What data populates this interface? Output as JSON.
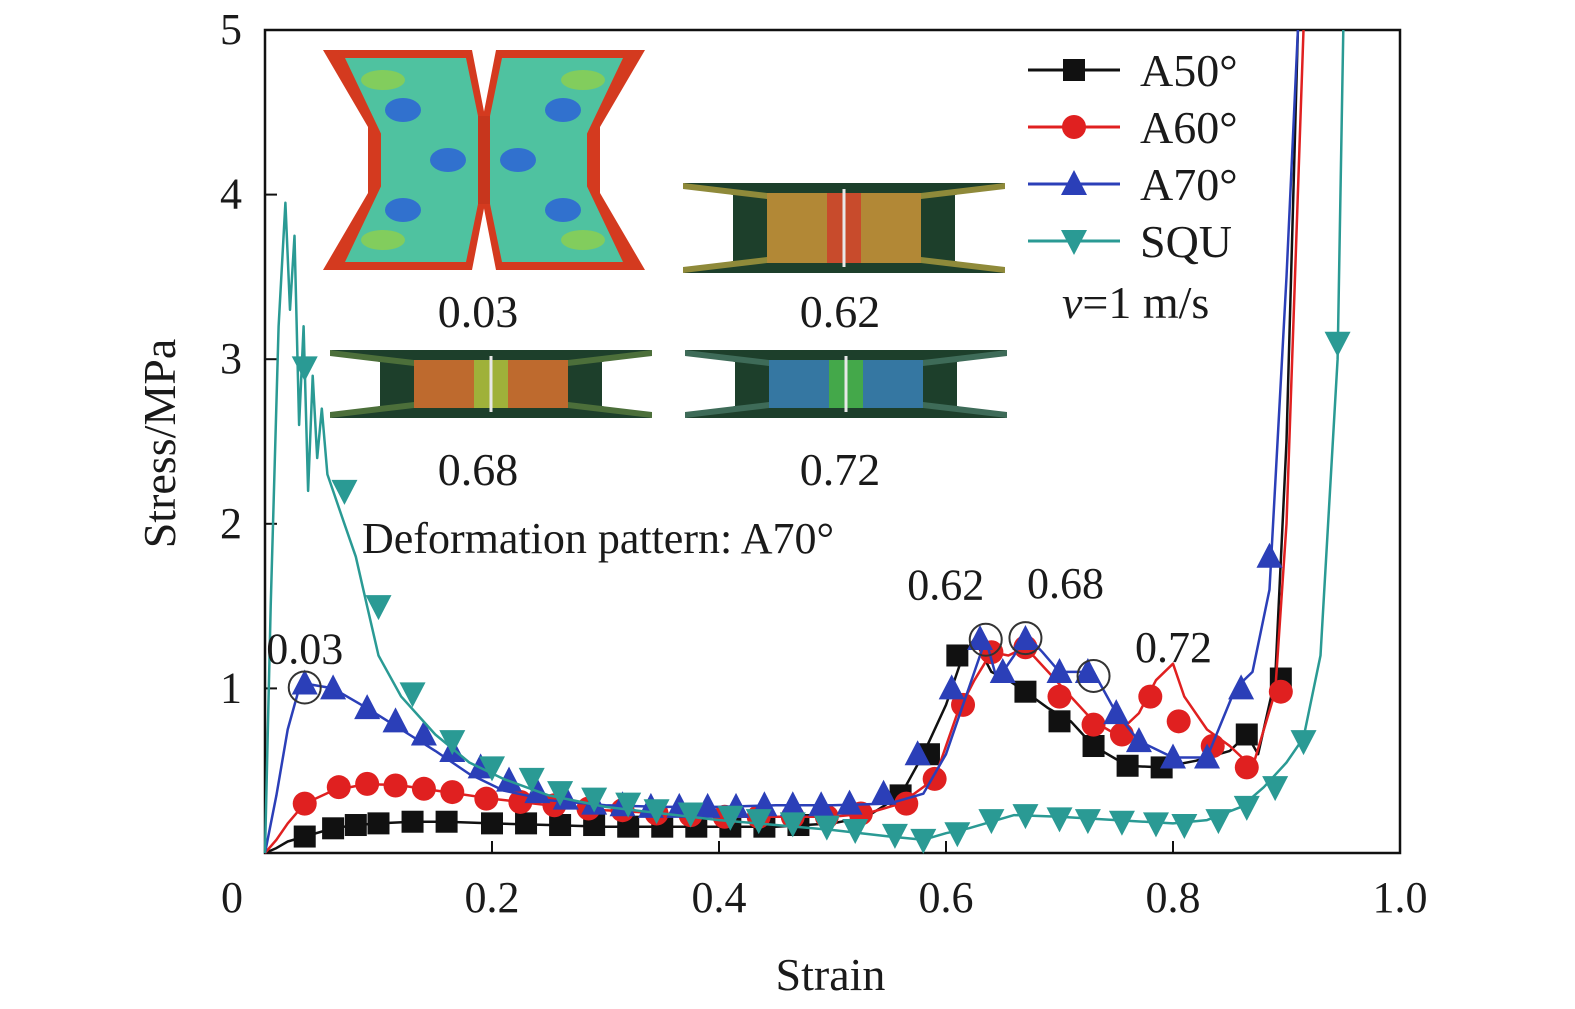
{
  "chart_data": {
    "type": "line",
    "xlabel": "Strain",
    "ylabel": "Stress/MPa",
    "xlim": [
      0,
      1.0
    ],
    "ylim": [
      0,
      5
    ],
    "x_ticks": [
      "0",
      "0.2",
      "0.4",
      "0.6",
      "0.8",
      "1.0"
    ],
    "y_ticks": [
      "1",
      "2",
      "3",
      "4",
      "5"
    ],
    "grid": false,
    "legend_position": "top-right",
    "legend_note": "v=1 m/s",
    "series": [
      {
        "name": "A50°",
        "color": "#111111",
        "marker": "square",
        "points": [
          [
            0,
            0
          ],
          [
            0.01,
            0.03
          ],
          [
            0.02,
            0.07
          ],
          [
            0.035,
            0.1
          ],
          [
            0.06,
            0.15
          ],
          [
            0.08,
            0.17
          ],
          [
            0.1,
            0.18
          ],
          [
            0.13,
            0.19
          ],
          [
            0.16,
            0.19
          ],
          [
            0.2,
            0.18
          ],
          [
            0.25,
            0.17
          ],
          [
            0.3,
            0.16
          ],
          [
            0.35,
            0.16
          ],
          [
            0.4,
            0.16
          ],
          [
            0.45,
            0.16
          ],
          [
            0.5,
            0.18
          ],
          [
            0.53,
            0.22
          ],
          [
            0.56,
            0.35
          ],
          [
            0.58,
            0.6
          ],
          [
            0.6,
            0.9
          ],
          [
            0.615,
            1.2
          ],
          [
            0.625,
            1.3
          ],
          [
            0.64,
            1.1
          ],
          [
            0.655,
            1.05
          ],
          [
            0.67,
            0.98
          ],
          [
            0.69,
            0.88
          ],
          [
            0.71,
            0.8
          ],
          [
            0.73,
            0.65
          ],
          [
            0.76,
            0.53
          ],
          [
            0.79,
            0.52
          ],
          [
            0.82,
            0.56
          ],
          [
            0.85,
            0.62
          ],
          [
            0.865,
            0.72
          ],
          [
            0.875,
            0.6
          ],
          [
            0.89,
            1.06
          ],
          [
            0.9,
            2.5
          ],
          [
            0.91,
            5.0
          ]
        ],
        "markers_x": [
          0.035,
          0.06,
          0.08,
          0.1,
          0.13,
          0.16,
          0.2,
          0.23,
          0.26,
          0.29,
          0.32,
          0.35,
          0.38,
          0.41,
          0.44,
          0.47,
          0.56,
          0.585,
          0.61,
          0.67,
          0.7,
          0.73,
          0.76,
          0.79,
          0.865,
          0.895
        ],
        "markers_y": [
          0.1,
          0.15,
          0.17,
          0.18,
          0.19,
          0.19,
          0.18,
          0.18,
          0.17,
          0.17,
          0.16,
          0.16,
          0.16,
          0.16,
          0.16,
          0.17,
          0.35,
          0.6,
          1.2,
          0.98,
          0.8,
          0.65,
          0.53,
          0.52,
          0.72,
          1.06
        ]
      },
      {
        "name": "A60°",
        "color": "#e02020",
        "marker": "circle",
        "points": [
          [
            0,
            0
          ],
          [
            0.01,
            0.08
          ],
          [
            0.02,
            0.18
          ],
          [
            0.035,
            0.3
          ],
          [
            0.06,
            0.38
          ],
          [
            0.09,
            0.42
          ],
          [
            0.12,
            0.41
          ],
          [
            0.16,
            0.37
          ],
          [
            0.2,
            0.33
          ],
          [
            0.25,
            0.29
          ],
          [
            0.3,
            0.26
          ],
          [
            0.35,
            0.24
          ],
          [
            0.4,
            0.22
          ],
          [
            0.45,
            0.22
          ],
          [
            0.5,
            0.22
          ],
          [
            0.53,
            0.24
          ],
          [
            0.56,
            0.3
          ],
          [
            0.59,
            0.45
          ],
          [
            0.61,
            0.85
          ],
          [
            0.625,
            1.05
          ],
          [
            0.64,
            1.22
          ],
          [
            0.655,
            1.2
          ],
          [
            0.67,
            1.25
          ],
          [
            0.69,
            1.1
          ],
          [
            0.71,
            0.95
          ],
          [
            0.73,
            0.8
          ],
          [
            0.75,
            0.72
          ],
          [
            0.77,
            0.85
          ],
          [
            0.785,
            1.05
          ],
          [
            0.8,
            1.15
          ],
          [
            0.81,
            0.95
          ],
          [
            0.83,
            0.75
          ],
          [
            0.85,
            0.65
          ],
          [
            0.87,
            0.52
          ],
          [
            0.89,
            0.98
          ],
          [
            0.9,
            2.0
          ],
          [
            0.915,
            5.0
          ]
        ],
        "markers_x": [
          0.035,
          0.065,
          0.09,
          0.115,
          0.14,
          0.165,
          0.195,
          0.225,
          0.255,
          0.285,
          0.315,
          0.345,
          0.375,
          0.405,
          0.435,
          0.465,
          0.495,
          0.525,
          0.565,
          0.59,
          0.615,
          0.64,
          0.67,
          0.7,
          0.73,
          0.755,
          0.78,
          0.805,
          0.835,
          0.865,
          0.895
        ],
        "markers_y": [
          0.3,
          0.4,
          0.42,
          0.41,
          0.39,
          0.37,
          0.33,
          0.31,
          0.29,
          0.27,
          0.26,
          0.24,
          0.23,
          0.22,
          0.22,
          0.22,
          0.22,
          0.24,
          0.3,
          0.45,
          0.9,
          1.22,
          1.25,
          0.95,
          0.78,
          0.72,
          0.95,
          0.8,
          0.65,
          0.52,
          0.98
        ]
      },
      {
        "name": "A70°",
        "color": "#2b3fb8",
        "marker": "triangle-up",
        "points": [
          [
            0,
            0
          ],
          [
            0.01,
            0.35
          ],
          [
            0.02,
            0.75
          ],
          [
            0.03,
            1.0
          ],
          [
            0.035,
            1.03
          ],
          [
            0.06,
            1.0
          ],
          [
            0.09,
            0.88
          ],
          [
            0.12,
            0.75
          ],
          [
            0.15,
            0.62
          ],
          [
            0.18,
            0.48
          ],
          [
            0.21,
            0.38
          ],
          [
            0.25,
            0.32
          ],
          [
            0.3,
            0.29
          ],
          [
            0.35,
            0.28
          ],
          [
            0.4,
            0.28
          ],
          [
            0.45,
            0.29
          ],
          [
            0.5,
            0.29
          ],
          [
            0.55,
            0.3
          ],
          [
            0.58,
            0.36
          ],
          [
            0.6,
            0.6
          ],
          [
            0.62,
            1.0
          ],
          [
            0.635,
            1.3
          ],
          [
            0.645,
            1.05
          ],
          [
            0.66,
            1.2
          ],
          [
            0.67,
            1.33
          ],
          [
            0.685,
            1.22
          ],
          [
            0.7,
            1.1
          ],
          [
            0.72,
            1.1
          ],
          [
            0.73,
            1.1
          ],
          [
            0.75,
            0.85
          ],
          [
            0.77,
            0.68
          ],
          [
            0.8,
            0.58
          ],
          [
            0.83,
            0.58
          ],
          [
            0.855,
            1.0
          ],
          [
            0.87,
            1.1
          ],
          [
            0.885,
            1.6
          ],
          [
            0.9,
            3.5
          ],
          [
            0.91,
            5.0
          ]
        ],
        "markers_x": [
          0.035,
          0.06,
          0.09,
          0.115,
          0.14,
          0.165,
          0.19,
          0.215,
          0.24,
          0.265,
          0.29,
          0.315,
          0.34,
          0.365,
          0.39,
          0.415,
          0.44,
          0.465,
          0.49,
          0.515,
          0.545,
          0.575,
          0.605,
          0.63,
          0.65,
          0.67,
          0.7,
          0.725,
          0.75,
          0.77,
          0.8,
          0.83,
          0.86,
          0.885
        ],
        "markers_y": [
          1.03,
          1.0,
          0.88,
          0.8,
          0.72,
          0.62,
          0.52,
          0.44,
          0.37,
          0.33,
          0.3,
          0.29,
          0.28,
          0.28,
          0.28,
          0.28,
          0.29,
          0.29,
          0.29,
          0.3,
          0.36,
          0.6,
          1.0,
          1.3,
          1.1,
          1.3,
          1.1,
          1.1,
          0.85,
          0.68,
          0.58,
          0.58,
          1.0,
          1.8
        ]
      },
      {
        "name": "SQU",
        "color": "#2a9a94",
        "marker": "triangle-down",
        "points": [
          [
            0,
            0
          ],
          [
            0.005,
            1.5
          ],
          [
            0.012,
            3.2
          ],
          [
            0.018,
            3.95
          ],
          [
            0.022,
            3.3
          ],
          [
            0.026,
            3.75
          ],
          [
            0.03,
            2.6
          ],
          [
            0.034,
            3.2
          ],
          [
            0.038,
            2.2
          ],
          [
            0.042,
            2.9
          ],
          [
            0.046,
            2.4
          ],
          [
            0.05,
            2.7
          ],
          [
            0.055,
            2.3
          ],
          [
            0.06,
            2.2
          ],
          [
            0.07,
            2.0
          ],
          [
            0.08,
            1.8
          ],
          [
            0.09,
            1.5
          ],
          [
            0.1,
            1.2
          ],
          [
            0.12,
            0.95
          ],
          [
            0.15,
            0.72
          ],
          [
            0.18,
            0.55
          ],
          [
            0.21,
            0.45
          ],
          [
            0.25,
            0.35
          ],
          [
            0.3,
            0.28
          ],
          [
            0.35,
            0.24
          ],
          [
            0.4,
            0.2
          ],
          [
            0.45,
            0.17
          ],
          [
            0.5,
            0.14
          ],
          [
            0.55,
            0.1
          ],
          [
            0.58,
            0.08
          ],
          [
            0.6,
            0.12
          ],
          [
            0.62,
            0.15
          ],
          [
            0.66,
            0.23
          ],
          [
            0.7,
            0.22
          ],
          [
            0.75,
            0.2
          ],
          [
            0.8,
            0.18
          ],
          [
            0.83,
            0.2
          ],
          [
            0.86,
            0.28
          ],
          [
            0.88,
            0.4
          ],
          [
            0.9,
            0.55
          ],
          [
            0.915,
            0.7
          ],
          [
            0.93,
            1.2
          ],
          [
            0.945,
            3.0
          ],
          [
            0.95,
            5.0
          ]
        ],
        "markers_x": [
          0.035,
          0.07,
          0.1,
          0.13,
          0.165,
          0.2,
          0.235,
          0.26,
          0.29,
          0.32,
          0.345,
          0.375,
          0.41,
          0.435,
          0.465,
          0.495,
          0.52,
          0.555,
          0.58,
          0.61,
          0.64,
          0.67,
          0.7,
          0.725,
          0.755,
          0.785,
          0.81,
          0.84,
          0.865,
          0.89,
          0.915,
          0.945
        ],
        "markers_y": [
          2.95,
          2.2,
          1.5,
          0.97,
          0.68,
          0.52,
          0.45,
          0.37,
          0.33,
          0.3,
          0.26,
          0.24,
          0.22,
          0.2,
          0.18,
          0.16,
          0.14,
          0.11,
          0.08,
          0.12,
          0.2,
          0.23,
          0.21,
          0.2,
          0.19,
          0.18,
          0.17,
          0.2,
          0.28,
          0.4,
          0.68,
          3.1
        ]
      }
    ],
    "annotations": [
      {
        "text": "0.03",
        "x": 0.035,
        "y": 1.03
      },
      {
        "text": "0.62",
        "x": 0.635,
        "y": 1.32
      },
      {
        "text": "0.68",
        "x": 0.67,
        "y": 1.33
      },
      {
        "text": "0.72",
        "x": 0.73,
        "y": 1.1
      }
    ],
    "inset": {
      "title": "Deformation pattern: A70°",
      "panels": [
        {
          "label": "0.03"
        },
        {
          "label": "0.62"
        },
        {
          "label": "0.68"
        },
        {
          "label": "0.72"
        }
      ]
    }
  }
}
